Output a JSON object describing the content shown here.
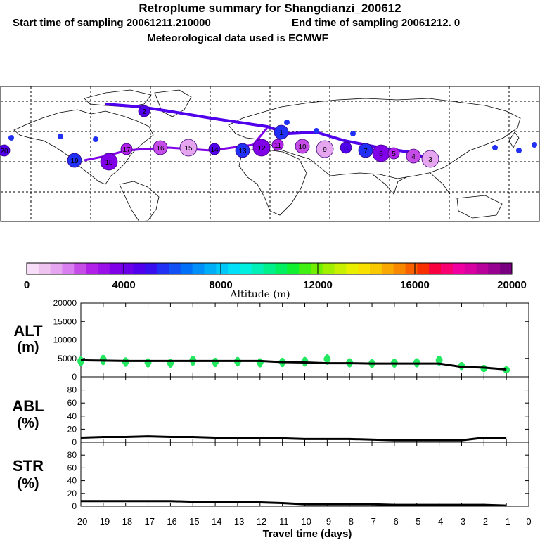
{
  "header": {
    "title": "Retroplume summary for Shangdianzi_200612",
    "start_label": "Start time of sampling 20061211.210000",
    "end_label": "End time of sampling 20061212.     0",
    "met_label": "Meteorological data used is ECMWF"
  },
  "colorbar": {
    "label": "Altitude (m)",
    "ticks": [
      "0",
      "4000",
      "8000",
      "12000",
      "16000",
      "20000"
    ],
    "colors": [
      "#f7ddf7",
      "#efc3ef",
      "#e5a6ef",
      "#d97fef",
      "#c64ce8",
      "#b020e8",
      "#9a10e8",
      "#8000e8",
      "#6a00e8",
      "#5000ec",
      "#3810f0",
      "#2030f4",
      "#1050f4",
      "#0070f8",
      "#0090f8",
      "#00aef8",
      "#00c8f8",
      "#00e0f8",
      "#00f0e0",
      "#00f0b8",
      "#00f08c",
      "#00f060",
      "#10f030",
      "#40f010",
      "#70f000",
      "#a0f000",
      "#c8f000",
      "#e8f000",
      "#f8e000",
      "#f8c800",
      "#f8a800",
      "#f88800",
      "#f86000",
      "#f83000",
      "#f80040",
      "#f80070",
      "#f000a0",
      "#d800a0",
      "#b8009a",
      "#980090",
      "#780080"
    ]
  },
  "chart_data": [
    {
      "type": "scatter",
      "name": "ALT",
      "ylabel": "ALT",
      "yunit": "(m)",
      "ylim": [
        0,
        20000
      ],
      "yticks": [
        "20000",
        "15000",
        "10000",
        "5000",
        "0"
      ],
      "x": [
        -20,
        -19,
        -18,
        -17,
        -16,
        -15,
        -14,
        -13,
        -12,
        -11,
        -10,
        -9,
        -8,
        -7,
        -6,
        -5,
        -4,
        -3,
        -2,
        -1
      ],
      "line": [
        4500,
        4400,
        4300,
        4300,
        4300,
        4300,
        4300,
        4300,
        4300,
        4000,
        3900,
        3700,
        3700,
        3600,
        3600,
        3600,
        3600,
        2700,
        2500,
        2000
      ],
      "points": [
        4300,
        4700,
        4100,
        3900,
        3800,
        4500,
        4000,
        4200,
        3900,
        4000,
        4200,
        4800,
        3900,
        3700,
        3800,
        3900,
        4500,
        3000,
        2300,
        1900
      ],
      "xlabel": "Travel time (days)"
    },
    {
      "type": "line",
      "name": "ABL",
      "ylabel": "ABL",
      "yunit": "(%)",
      "ylim": [
        0,
        100
      ],
      "yticks": [
        "80",
        "60",
        "40",
        "20",
        "0"
      ],
      "x": [
        -20,
        -19,
        -18,
        -17,
        -16,
        -15,
        -14,
        -13,
        -12,
        -11,
        -10,
        -9,
        -8,
        -7,
        -6,
        -5,
        -4,
        -3,
        -2,
        -1
      ],
      "values": [
        7,
        8,
        8,
        9,
        8,
        8,
        7,
        7,
        7,
        6,
        5,
        5,
        5,
        4,
        3,
        3,
        3,
        3,
        7,
        7
      ]
    },
    {
      "type": "line",
      "name": "STR",
      "ylabel": "STR",
      "yunit": "(%)",
      "ylim": [
        0,
        100
      ],
      "yticks": [
        "80",
        "60",
        "40",
        "20",
        "0"
      ],
      "x": [
        -20,
        -19,
        -18,
        -17,
        -16,
        -15,
        -14,
        -13,
        -12,
        -11,
        -10,
        -9,
        -8,
        -7,
        -6,
        -5,
        -4,
        -3,
        -2,
        -1
      ],
      "values": [
        8,
        8,
        8,
        8,
        8,
        7,
        7,
        7,
        6,
        5,
        3,
        3,
        3,
        3,
        2,
        2,
        2,
        2,
        2,
        1
      ],
      "xticks": [
        "-20",
        "-19",
        "-18",
        "-17",
        "-16",
        "-15",
        "-14",
        "-13",
        "-12",
        "-11",
        "-10",
        "-9",
        "-8",
        "-7",
        "-6",
        "-5",
        "-4",
        "-3",
        "-2",
        "-1",
        "0"
      ]
    }
  ],
  "map": {
    "labels": [
      "20",
      "19",
      "18",
      "17",
      "16",
      "15",
      "14",
      "13",
      "12",
      "11",
      "10",
      "9",
      "8",
      "7",
      "6",
      "5",
      "4",
      "3",
      "2",
      "1"
    ],
    "marker_colors": [
      "#5000ec",
      "#2030f4",
      "#8000e8",
      "#b020e8",
      "#c64ce8",
      "#e5a6ef"
    ]
  }
}
